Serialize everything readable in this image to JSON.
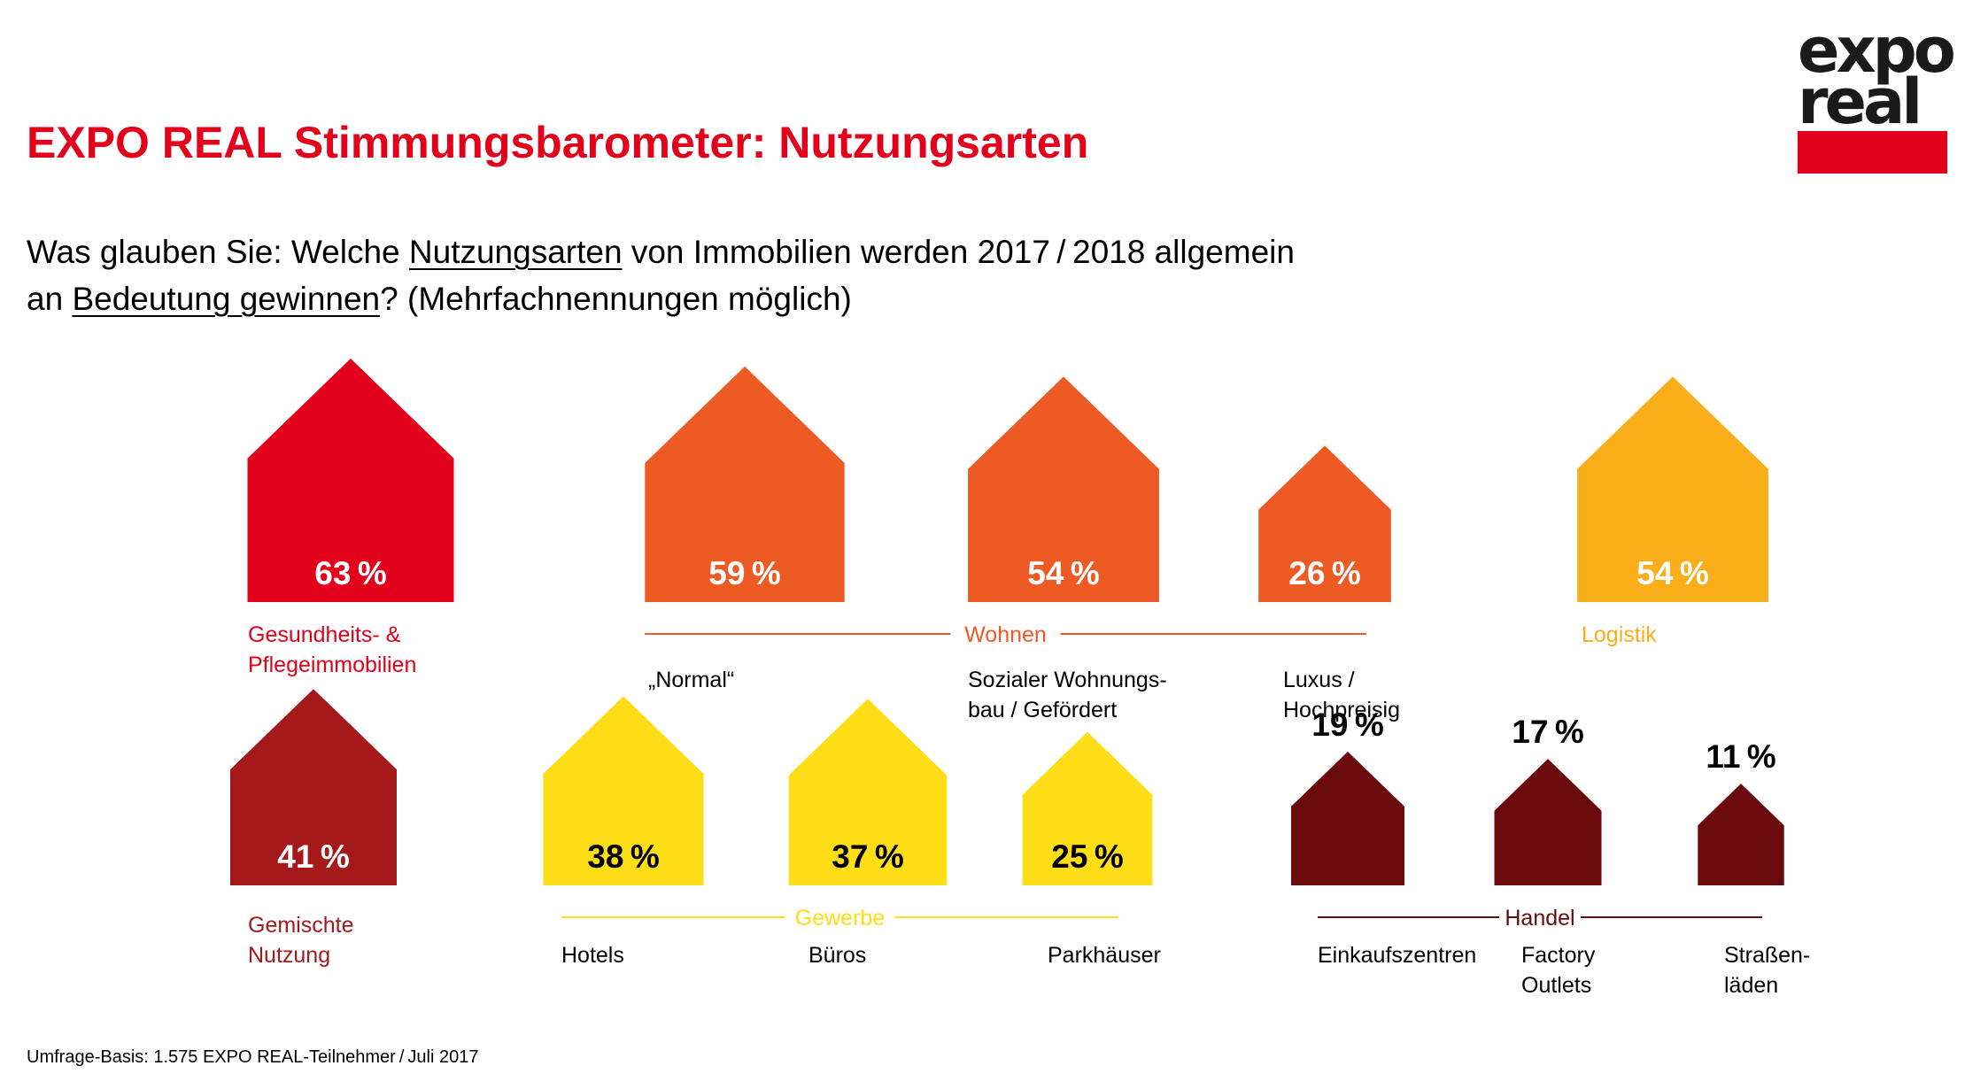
{
  "title": "EXPO REAL Stimmungsbarometer: Nutzungsarten",
  "question": {
    "l1_a": "Was glauben Sie: Welche ",
    "l1_u": "Nutzungsarten",
    "l1_b": " von Immobilien werden 2017 / 2018 allgemein",
    "l2_a": "an ",
    "l2_u": "Bedeutung gewinnen",
    "l2_b": "? (Mehrfachnennungen möglich)"
  },
  "source": "Umfrage-Basis: 1.575 EXPO REAL-Teilnehmer / Juli 2017",
  "logo": {
    "line1": "expo",
    "line2": "real"
  },
  "colors": {
    "red": "#E2001A",
    "orange": "#EE5A24",
    "amber": "#F9AE1A",
    "darkred": "#A6191B",
    "yellow": "#FFDE17",
    "maroon": "#6B0A0C"
  },
  "chart_data": {
    "type": "bar",
    "unit": "%",
    "categories": [
      "Gesundheits- & Pflegeimmobilien",
      "„Normal“",
      "Sozialer Wohnungsbau / Gefördert",
      "Luxus / Hochpreisig",
      "Logistik",
      "Gemischte Nutzung",
      "Hotels",
      "Büros",
      "Parkhäuser",
      "Einkaufszentren",
      "Factory Outlets",
      "Straßenläden"
    ],
    "values": [
      63,
      59,
      54,
      26,
      54,
      41,
      38,
      37,
      25,
      19,
      17,
      11
    ],
    "groups": [
      "Wohnen",
      "Gewerbe",
      "Handel"
    ],
    "items": [
      {
        "label": [
          "Gesundheits- &",
          "Pflegeimmobilien"
        ],
        "value": 63,
        "value_text": "63 %",
        "color": "#E2001A",
        "label_color": "#E2001A",
        "value_color": "#ffffff"
      },
      {
        "label": [
          "„Normal“"
        ],
        "value": 59,
        "value_text": "59 %",
        "group": "Wohnen",
        "color": "#EE5A24",
        "label_color": "#000000",
        "value_color": "#ffffff"
      },
      {
        "label": [
          "Sozialer Wohnungs-",
          "bau / Gefördert"
        ],
        "value": 54,
        "value_text": "54 %",
        "group": "Wohnen",
        "color": "#EE5A24",
        "label_color": "#000000",
        "value_color": "#ffffff"
      },
      {
        "label": [
          "Luxus /",
          "Hochpreisig"
        ],
        "value": 26,
        "value_text": "26 %",
        "group": "Wohnen",
        "color": "#EE5A24",
        "label_color": "#000000",
        "value_color": "#ffffff"
      },
      {
        "label": [
          "Logistik"
        ],
        "value": 54,
        "value_text": "54 %",
        "color": "#F9AE1A",
        "label_color": "#F9AE1A",
        "value_color": "#ffffff"
      },
      {
        "label": [
          "Gemischte",
          "Nutzung"
        ],
        "value": 41,
        "value_text": "41 %",
        "color": "#A6191B",
        "label_color": "#A6191B",
        "value_color": "#ffffff"
      },
      {
        "label": [
          "Hotels"
        ],
        "value": 38,
        "value_text": "38 %",
        "group": "Gewerbe",
        "color": "#FFDE17",
        "label_color": "#000000",
        "value_color": "#000000"
      },
      {
        "label": [
          "Büros"
        ],
        "value": 37,
        "value_text": "37 %",
        "group": "Gewerbe",
        "color": "#FFDE17",
        "label_color": "#000000",
        "value_color": "#000000"
      },
      {
        "label": [
          "Parkhäuser"
        ],
        "value": 25,
        "value_text": "25 %",
        "group": "Gewerbe",
        "color": "#FFDE17",
        "label_color": "#000000",
        "value_color": "#000000"
      },
      {
        "label": [
          "Einkaufszentren"
        ],
        "value": 19,
        "value_text": "19 %",
        "group": "Handel",
        "color": "#6B0A0C",
        "label_color": "#000000",
        "value_color": "#000000"
      },
      {
        "label": [
          "Factory",
          "Outlets"
        ],
        "value": 17,
        "value_text": "17 %",
        "group": "Handel",
        "color": "#6B0A0C",
        "label_color": "#000000",
        "value_color": "#000000"
      },
      {
        "label": [
          "Straßen-",
          "läden"
        ],
        "value": 11,
        "value_text": "11 %",
        "group": "Handel",
        "color": "#6B0A0C",
        "label_color": "#000000",
        "value_color": "#000000"
      }
    ],
    "group_colors": {
      "Wohnen": "#EE5A24",
      "Gewerbe": "#FFDE17",
      "Handel": "#6B0A0C"
    }
  }
}
